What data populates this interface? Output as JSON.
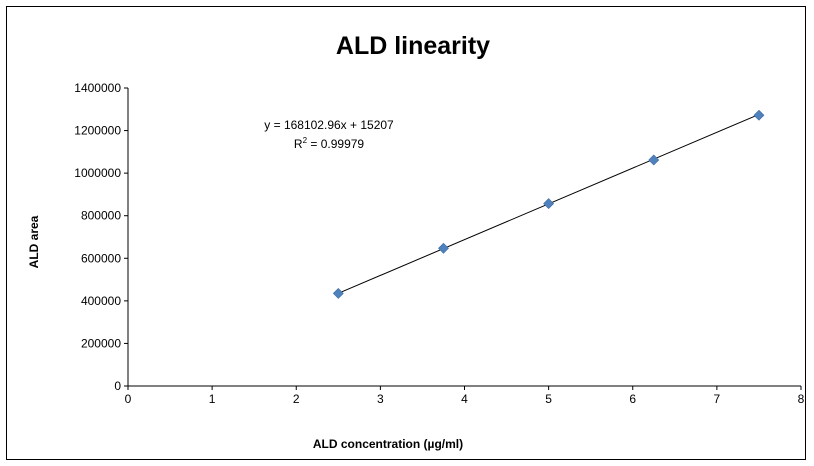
{
  "chart_data": {
    "type": "scatter",
    "title": "ALD linearity",
    "xlabel": "ALD concentration  (µg/ml)",
    "ylabel": "ALD area",
    "xlim": [
      0,
      8
    ],
    "ylim": [
      0,
      1400000
    ],
    "x_ticks": [
      0,
      1,
      2,
      3,
      4,
      5,
      6,
      7,
      8
    ],
    "y_ticks": [
      0,
      200000,
      400000,
      600000,
      800000,
      1000000,
      1200000,
      1400000
    ],
    "grid": false,
    "legend": "none",
    "series": [
      {
        "color": "#4F81BD",
        "marker": "diamond",
        "x": [
          2.5,
          3.75,
          5.0,
          6.25,
          7.5
        ],
        "y": [
          435000,
          647000,
          857000,
          1062000,
          1272000
        ]
      }
    ],
    "trendline": {
      "slope": 168102.96,
      "intercept": 15207,
      "x_range": [
        2.5,
        7.5
      ],
      "color": "#000000"
    },
    "annotations": {
      "equation": "y = 168102.96x + 15207",
      "r_squared_prefix": "R",
      "r_squared_sup": "2",
      "r_squared_value": " = 0.99979"
    }
  }
}
